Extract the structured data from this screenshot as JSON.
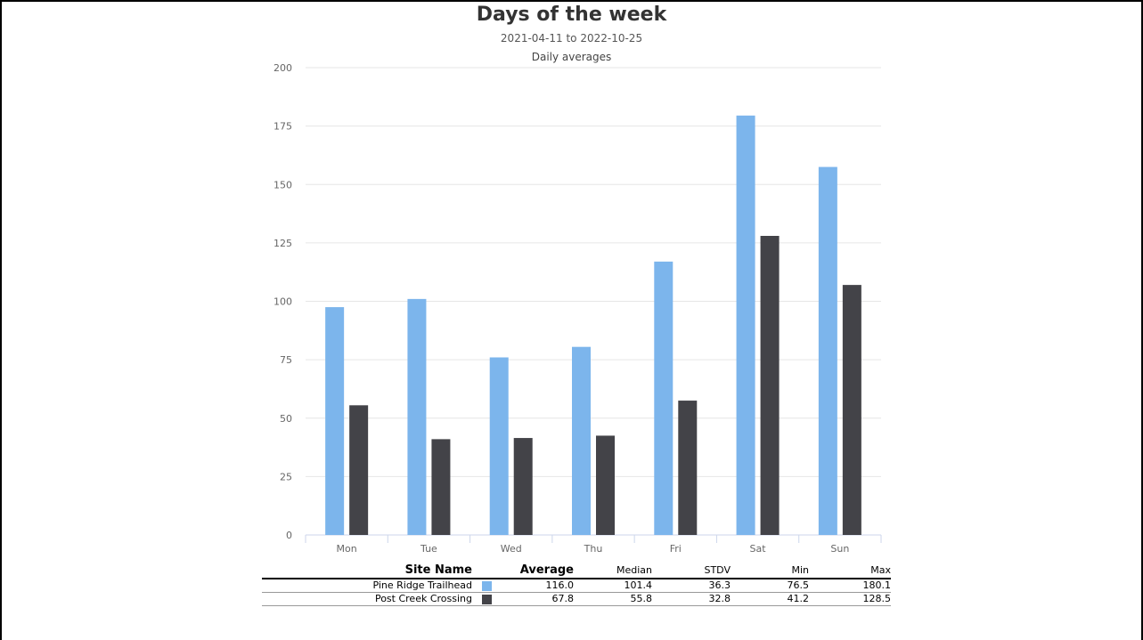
{
  "header": {
    "title": "Days of the week",
    "subtitle": "2021-04-11 to 2022-10-25"
  },
  "chart_data": {
    "type": "bar",
    "title": "Daily averages",
    "categories": [
      "Mon",
      "Tue",
      "Wed",
      "Thu",
      "Fri",
      "Sat",
      "Sun"
    ],
    "series": [
      {
        "name": "Pine Ridge Trailhead",
        "color": "#7cb5ec",
        "values": [
          97.5,
          101,
          76,
          80.5,
          117,
          179.5,
          157.5
        ]
      },
      {
        "name": "Post Creek Crossing",
        "color": "#434348",
        "values": [
          55.5,
          41,
          41.5,
          42.5,
          57.5,
          128,
          107
        ]
      }
    ],
    "ylim": [
      0,
      200
    ],
    "yticks": [
      0,
      25,
      50,
      75,
      100,
      125,
      150,
      175,
      200
    ],
    "grid": true,
    "legend": "none"
  },
  "stats_table": {
    "headers": {
      "site_name": "Site Name",
      "average": "Average",
      "median": "Median",
      "stdv": "STDV",
      "min": "Min",
      "max": "Max"
    },
    "rows": [
      {
        "name": "Pine Ridge Trailhead",
        "color": "#7cb5ec",
        "average": "116.0",
        "median": "101.4",
        "stdv": "36.3",
        "min": "76.5",
        "max": "180.1"
      },
      {
        "name": "Post Creek Crossing",
        "color": "#434348",
        "average": "67.8",
        "median": "55.8",
        "stdv": "32.8",
        "min": "41.2",
        "max": "128.5"
      }
    ]
  }
}
